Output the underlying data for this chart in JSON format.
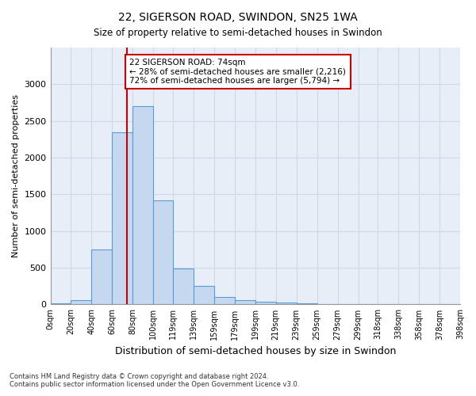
{
  "title1": "22, SIGERSON ROAD, SWINDON, SN25 1WA",
  "title2": "Size of property relative to semi-detached houses in Swindon",
  "xlabel": "Distribution of semi-detached houses by size in Swindon",
  "ylabel": "Number of semi-detached properties",
  "footnote1": "Contains HM Land Registry data © Crown copyright and database right 2024.",
  "footnote2": "Contains public sector information licensed under the Open Government Licence v3.0.",
  "property_size": 74,
  "property_label": "22 SIGERSON ROAD: 74sqm",
  "pct_smaller": 28,
  "n_smaller": 2216,
  "pct_larger": 72,
  "n_larger": 5794,
  "bar_color": "#c5d8f0",
  "bar_edge_color": "#5b9bd5",
  "vline_color": "#cc0000",
  "annotation_box_color": "#cc0000",
  "grid_color": "#d0d8e8",
  "bg_color": "#e8eef8",
  "bin_edges": [
    0,
    20,
    40,
    60,
    80,
    100,
    119,
    139,
    159,
    179,
    199,
    219,
    239,
    259,
    279,
    299,
    318,
    338,
    358,
    378,
    398
  ],
  "bin_labels": [
    "0sqm",
    "20sqm",
    "40sqm",
    "60sqm",
    "80sqm",
    "100sqm",
    "119sqm",
    "139sqm",
    "159sqm",
    "179sqm",
    "199sqm",
    "219sqm",
    "239sqm",
    "259sqm",
    "279sqm",
    "299sqm",
    "318sqm",
    "338sqm",
    "358sqm",
    "378sqm",
    "398sqm"
  ],
  "counts": [
    20,
    60,
    750,
    2350,
    2700,
    1420,
    490,
    250,
    100,
    60,
    40,
    30,
    20,
    10,
    0,
    0,
    0,
    0,
    0,
    0
  ],
  "ylim": [
    0,
    3500
  ],
  "yticks": [
    0,
    500,
    1000,
    1500,
    2000,
    2500,
    3000
  ]
}
